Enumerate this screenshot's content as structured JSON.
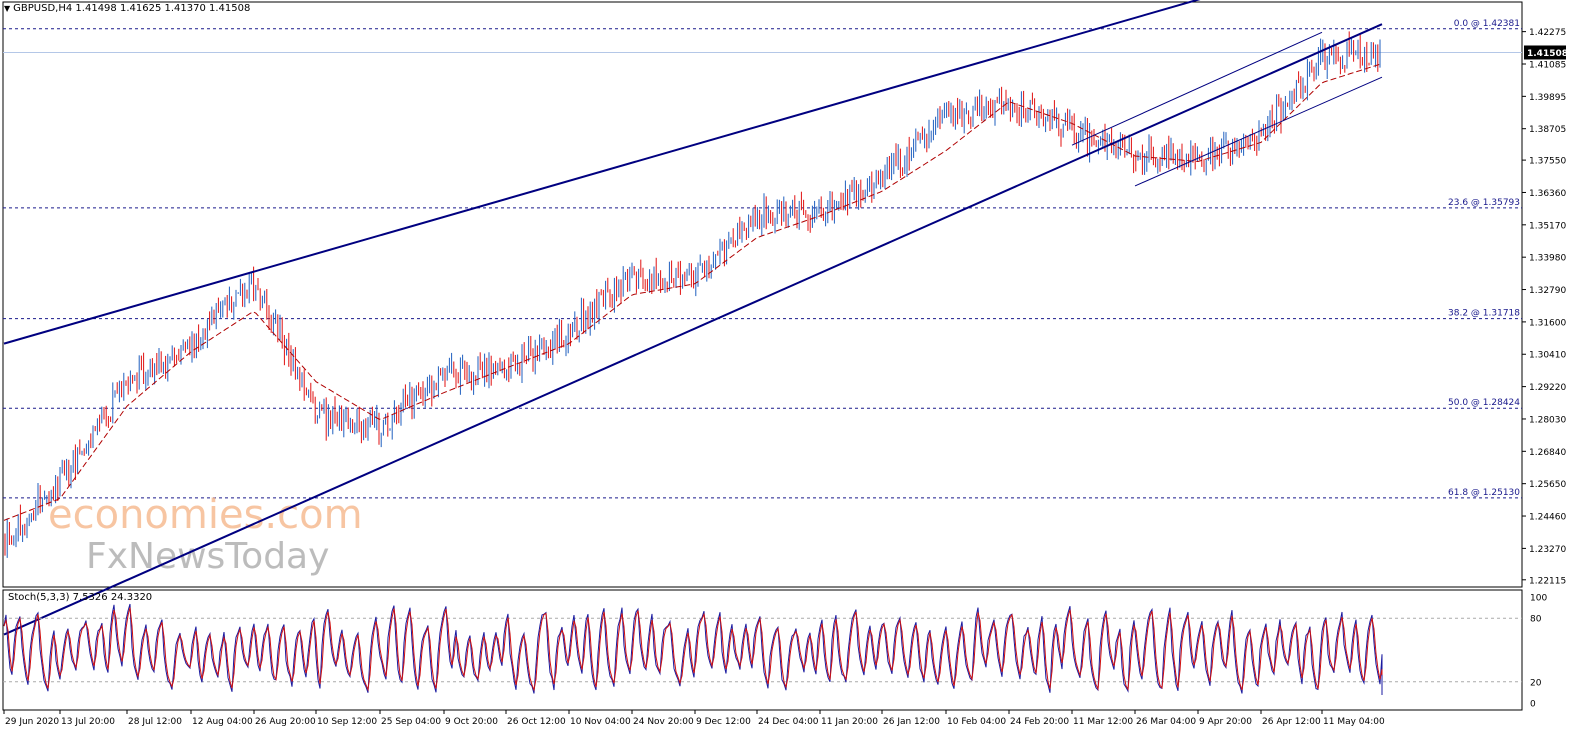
{
  "header": {
    "symbol": "GBPUSD,H4",
    "ohlc": "1.41498 1.41625 1.41370 1.41508"
  },
  "stoch_header": "Stoch(5,3,3) 7.5326 24.3320",
  "watermark": {
    "line1": "economies.com",
    "line2": "FxNewsToday"
  },
  "chart_data": [
    {
      "type": "line",
      "title": "GBPUSD,H4",
      "price_axis_ticks": [
        "1.42275",
        "1.41085",
        "1.39895",
        "1.38705",
        "1.37550",
        "1.36360",
        "1.35170",
        "1.33980",
        "1.32790",
        "1.31600",
        "1.30410",
        "1.29220",
        "1.28030",
        "1.26840",
        "1.25650",
        "1.24460",
        "1.23270",
        "1.22115"
      ],
      "ylim": [
        1.2185,
        1.4285
      ],
      "current_price": "1.41508",
      "x_tick_labels": [
        "29 Jun 2020",
        "13 Jul 20:00",
        "28 Jul 12:00",
        "12 Aug 04:00",
        "26 Aug 20:00",
        "10 Sep 12:00",
        "25 Sep 04:00",
        "9 Oct 20:00",
        "26 Oct 12:00",
        "10 Nov 04:00",
        "24 Nov 20:00",
        "9 Dec 12:00",
        "24 Dec 04:00",
        "11 Jan 20:00",
        "26 Jan 12:00",
        "10 Feb 04:00",
        "24 Feb 20:00",
        "11 Mar 12:00",
        "26 Mar 04:00",
        "9 Apr 20:00",
        "26 Apr 12:00",
        "11 May 04:00"
      ],
      "fibonacci_levels": [
        {
          "label": "0.0 @ 1.42381",
          "value": 1.42381
        },
        {
          "label": "23.6 @ 1.35793",
          "value": 1.35793
        },
        {
          "label": "38.2 @ 1.31718",
          "value": 1.31718
        },
        {
          "label": "50.0 @ 1.28424",
          "value": 1.28424
        },
        {
          "label": "61.8 @ 1.25130",
          "value": 1.2513
        }
      ],
      "price_path": [
        {
          "x": "29 Jun 2020",
          "y": 1.236
        },
        {
          "x": "13 Jul 20:00",
          "y": 1.257
        },
        {
          "x": "28 Jul 12:00",
          "y": 1.294
        },
        {
          "x": "12 Aug 04:00",
          "y": 1.307
        },
        {
          "x": "26 Aug 20:00",
          "y": 1.332
        },
        {
          "x": "10 Sep 12:00",
          "y": 1.281
        },
        {
          "x": "25 Sep 04:00",
          "y": 1.278
        },
        {
          "x": "9 Oct 20:00",
          "y": 1.296
        },
        {
          "x": "26 Oct 12:00",
          "y": 1.298
        },
        {
          "x": "10 Nov 04:00",
          "y": 1.313
        },
        {
          "x": "24 Nov 20:00",
          "y": 1.333
        },
        {
          "x": "9 Dec 12:00",
          "y": 1.331
        },
        {
          "x": "24 Dec 04:00",
          "y": 1.356
        },
        {
          "x": "11 Jan 20:00",
          "y": 1.357
        },
        {
          "x": "26 Jan 12:00",
          "y": 1.369
        },
        {
          "x": "10 Feb 04:00",
          "y": 1.392
        },
        {
          "x": "24 Feb 20:00",
          "y": 1.397
        },
        {
          "x": "11 Mar 12:00",
          "y": 1.386
        },
        {
          "x": "26 Mar 04:00",
          "y": 1.377
        },
        {
          "x": "9 Apr 20:00",
          "y": 1.376
        },
        {
          "x": "26 Apr 12:00",
          "y": 1.384
        },
        {
          "x": "11 May 04:00",
          "y": 1.413
        },
        {
          "x": "end",
          "y": 1.41508
        }
      ],
      "moving_average": [
        {
          "x": "29 Jun 2020",
          "y": 1.243
        },
        {
          "x": "13 Jul 20:00",
          "y": 1.251
        },
        {
          "x": "28 Jul 12:00",
          "y": 1.285
        },
        {
          "x": "12 Aug 04:00",
          "y": 1.305
        },
        {
          "x": "26 Aug 20:00",
          "y": 1.32
        },
        {
          "x": "10 Sep 12:00",
          "y": 1.294
        },
        {
          "x": "25 Sep 04:00",
          "y": 1.28
        },
        {
          "x": "9 Oct 20:00",
          "y": 1.29
        },
        {
          "x": "26 Oct 12:00",
          "y": 1.299
        },
        {
          "x": "10 Nov 04:00",
          "y": 1.308
        },
        {
          "x": "24 Nov 20:00",
          "y": 1.326
        },
        {
          "x": "9 Dec 12:00",
          "y": 1.33
        },
        {
          "x": "24 Dec 04:00",
          "y": 1.347
        },
        {
          "x": "11 Jan 20:00",
          "y": 1.355
        },
        {
          "x": "26 Jan 12:00",
          "y": 1.364
        },
        {
          "x": "10 Feb 04:00",
          "y": 1.379
        },
        {
          "x": "24 Feb 20:00",
          "y": 1.397
        },
        {
          "x": "11 Mar 12:00",
          "y": 1.389
        },
        {
          "x": "26 Mar 04:00",
          "y": 1.377
        },
        {
          "x": "9 Apr 20:00",
          "y": 1.375
        },
        {
          "x": "26 Apr 12:00",
          "y": 1.382
        },
        {
          "x": "11 May 04:00",
          "y": 1.404
        },
        {
          "x": "end",
          "y": 1.411
        }
      ],
      "trend_lines": [
        {
          "name": "channel-upper",
          "from": {
            "x": "29 Jun 2020",
            "y": 1.308
          },
          "to": {
            "x": "end",
            "y": 1.454
          }
        },
        {
          "name": "channel-lower",
          "from": {
            "x": "29 Jun 2020",
            "y": 1.201
          },
          "to": {
            "x": "end",
            "y": 1.4255
          }
        },
        {
          "name": "minor-upper",
          "from": {
            "x": "11 Mar 12:00",
            "y": 1.381
          },
          "to": {
            "x": "11 May 04:00",
            "y": 1.4225
          }
        },
        {
          "name": "minor-lower",
          "from": {
            "x": "26 Mar 04:00",
            "y": 1.366
          },
          "to": {
            "x": "end",
            "y": 1.406
          }
        }
      ]
    },
    {
      "type": "line",
      "title": "Stoch(5,3,3) 7.5326 24.3320",
      "ylim": [
        0,
        100
      ],
      "y_tick_labels": [
        "100",
        "80",
        "20",
        "0"
      ],
      "levels": [
        80,
        20
      ],
      "series": [
        {
          "name": "main",
          "last": 7.5326
        },
        {
          "name": "signal",
          "last": 24.332
        }
      ]
    }
  ],
  "colors": {
    "bull_candle": "#1f5fbf",
    "bear_candle": "#e01010",
    "trend_line": "#000080",
    "fib_line": "#1a1a8c",
    "moving_average": "#b00000",
    "stoch_main": "#1a1aa0",
    "stoch_signal": "#d01010",
    "watermark_orange": "#f4b183",
    "watermark_gray": "#a6a6a6",
    "current_price_bg": "#000000"
  }
}
